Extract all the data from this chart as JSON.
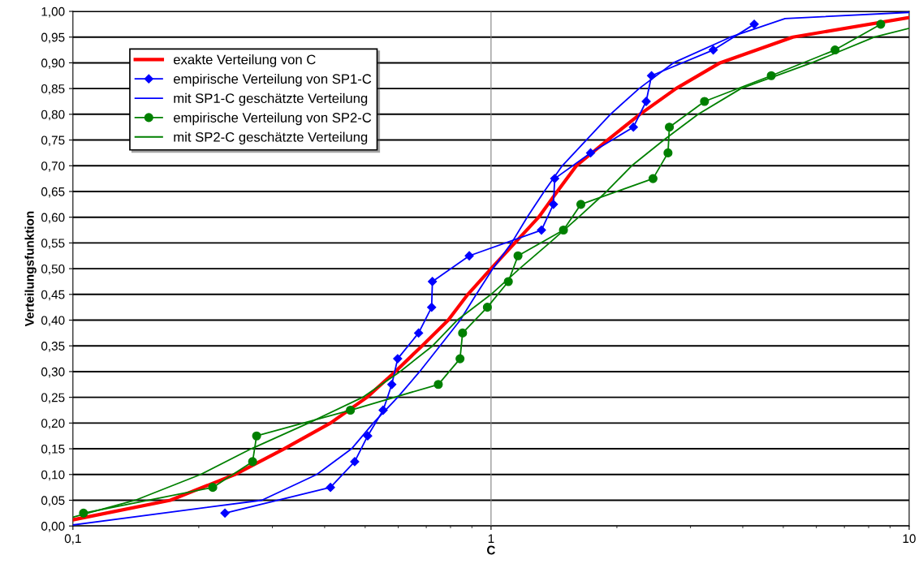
{
  "chart_data": {
    "type": "line",
    "xlabel": "C",
    "ylabel": "Verteilungsfunktion",
    "log": "x",
    "grid": "y",
    "ref_lines": [
      {
        "axis": "x",
        "value": 1,
        "color": "#808080"
      }
    ],
    "legend": "top left",
    "line_style": "solid",
    "xlim": [
      0.1,
      10
    ],
    "xticks": [
      {
        "value": 0.1,
        "label": "0,1"
      },
      1,
      10
    ],
    "ylim": [
      0,
      1
    ],
    "yticks": [
      {
        "value": 0,
        "label": "0,00"
      },
      {
        "value": 0.05,
        "label": "0,05"
      },
      {
        "value": 0.1,
        "label": "0,10"
      },
      {
        "value": 0.15,
        "label": "0,15"
      },
      {
        "value": 0.2,
        "label": "0,20"
      },
      {
        "value": 0.25,
        "label": "0,25"
      },
      {
        "value": 0.3,
        "label": "0,30"
      },
      {
        "value": 0.35,
        "label": "0,35"
      },
      {
        "value": 0.4,
        "label": "0,40"
      },
      {
        "value": 0.45,
        "label": "0,45"
      },
      {
        "value": 0.5,
        "label": "0,50"
      },
      {
        "value": 0.55,
        "label": "0,55"
      },
      {
        "value": 0.6,
        "label": "0,60"
      },
      {
        "value": 0.65,
        "label": "0,65"
      },
      {
        "value": 0.7,
        "label": "0,70"
      },
      {
        "value": 0.75,
        "label": "0,75"
      },
      {
        "value": 0.8,
        "label": "0,80"
      },
      {
        "value": 0.85,
        "label": "0,85"
      },
      {
        "value": 0.9,
        "label": "0,90"
      },
      {
        "value": 0.95,
        "label": "0,95"
      },
      {
        "value": 1,
        "label": "1,00"
      }
    ],
    "series": [
      {
        "name": "exakte Verteilung von C",
        "color": "#ff0000",
        "marker": "none",
        "x": [
          0.1,
          0.171,
          0.244,
          0.32,
          0.413,
          0.505,
          0.59,
          0.684,
          0.79,
          0.88,
          1,
          1.14,
          1.3,
          1.44,
          1.6,
          1.9,
          2.27,
          2.77,
          3.53,
          5.27,
          10
        ],
        "values": [
          0.012,
          0.05,
          0.1,
          0.15,
          0.2,
          0.25,
          0.3,
          0.35,
          0.4,
          0.45,
          0.5,
          0.55,
          0.6,
          0.65,
          0.7,
          0.75,
          0.8,
          0.85,
          0.9,
          0.95,
          0.988
        ]
      },
      {
        "name": "empirische Verteilung von SP1-C",
        "color": "#0000ff",
        "marker": "diamond",
        "x": [
          0.231,
          0.413,
          0.472,
          0.507,
          0.552,
          0.579,
          0.598,
          0.671,
          0.721,
          0.724,
          0.887,
          1.32,
          1.41,
          1.42,
          1.73,
          2.19,
          2.35,
          2.42,
          3.4,
          4.26
        ],
        "values": [
          0.025,
          0.075,
          0.125,
          0.175,
          0.225,
          0.275,
          0.325,
          0.375,
          0.425,
          0.475,
          0.525,
          0.575,
          0.625,
          0.675,
          0.725,
          0.775,
          0.825,
          0.875,
          0.925,
          0.975
        ]
      },
      {
        "name": "mit SP1-C geschätzte Verteilung",
        "color": "#0000ff",
        "marker": "none",
        "x": [
          0.1,
          0.283,
          0.383,
          0.464,
          0.523,
          0.598,
          0.675,
          0.755,
          0.844,
          0.922,
          1.01,
          1.12,
          1.22,
          1.34,
          1.48,
          1.69,
          1.93,
          2.26,
          2.73,
          3.74,
          5.05,
          10
        ],
        "values": [
          0.002,
          0.05,
          0.1,
          0.15,
          0.2,
          0.25,
          0.3,
          0.35,
          0.4,
          0.45,
          0.5,
          0.55,
          0.6,
          0.65,
          0.7,
          0.75,
          0.8,
          0.85,
          0.9,
          0.95,
          0.986,
          0.998
        ]
      },
      {
        "name": "empirische Verteilung von SP2-C",
        "color": "#008000",
        "marker": "circle",
        "x": [
          0.106,
          0.216,
          0.269,
          0.275,
          0.461,
          0.748,
          0.843,
          0.855,
          0.98,
          1.1,
          1.16,
          1.49,
          1.64,
          2.44,
          2.65,
          2.67,
          3.24,
          4.68,
          6.65,
          8.55
        ],
        "values": [
          0.025,
          0.075,
          0.125,
          0.175,
          0.225,
          0.275,
          0.325,
          0.375,
          0.425,
          0.475,
          0.525,
          0.575,
          0.625,
          0.675,
          0.725,
          0.775,
          0.825,
          0.875,
          0.925,
          0.975
        ]
      },
      {
        "name": "mit SP2-C geschätzte Verteilung",
        "color": "#008000",
        "marker": "none",
        "x": [
          0.1,
          0.141,
          0.202,
          0.267,
          0.366,
          0.493,
          0.606,
          0.725,
          0.83,
          1.0,
          1.17,
          1.38,
          1.62,
          1.89,
          2.17,
          2.59,
          3.13,
          3.96,
          5.85,
          8.26,
          10
        ],
        "values": [
          0.017,
          0.05,
          0.1,
          0.15,
          0.2,
          0.25,
          0.3,
          0.35,
          0.4,
          0.45,
          0.5,
          0.55,
          0.6,
          0.65,
          0.7,
          0.75,
          0.8,
          0.85,
          0.9,
          0.95,
          0.967
        ]
      }
    ]
  }
}
